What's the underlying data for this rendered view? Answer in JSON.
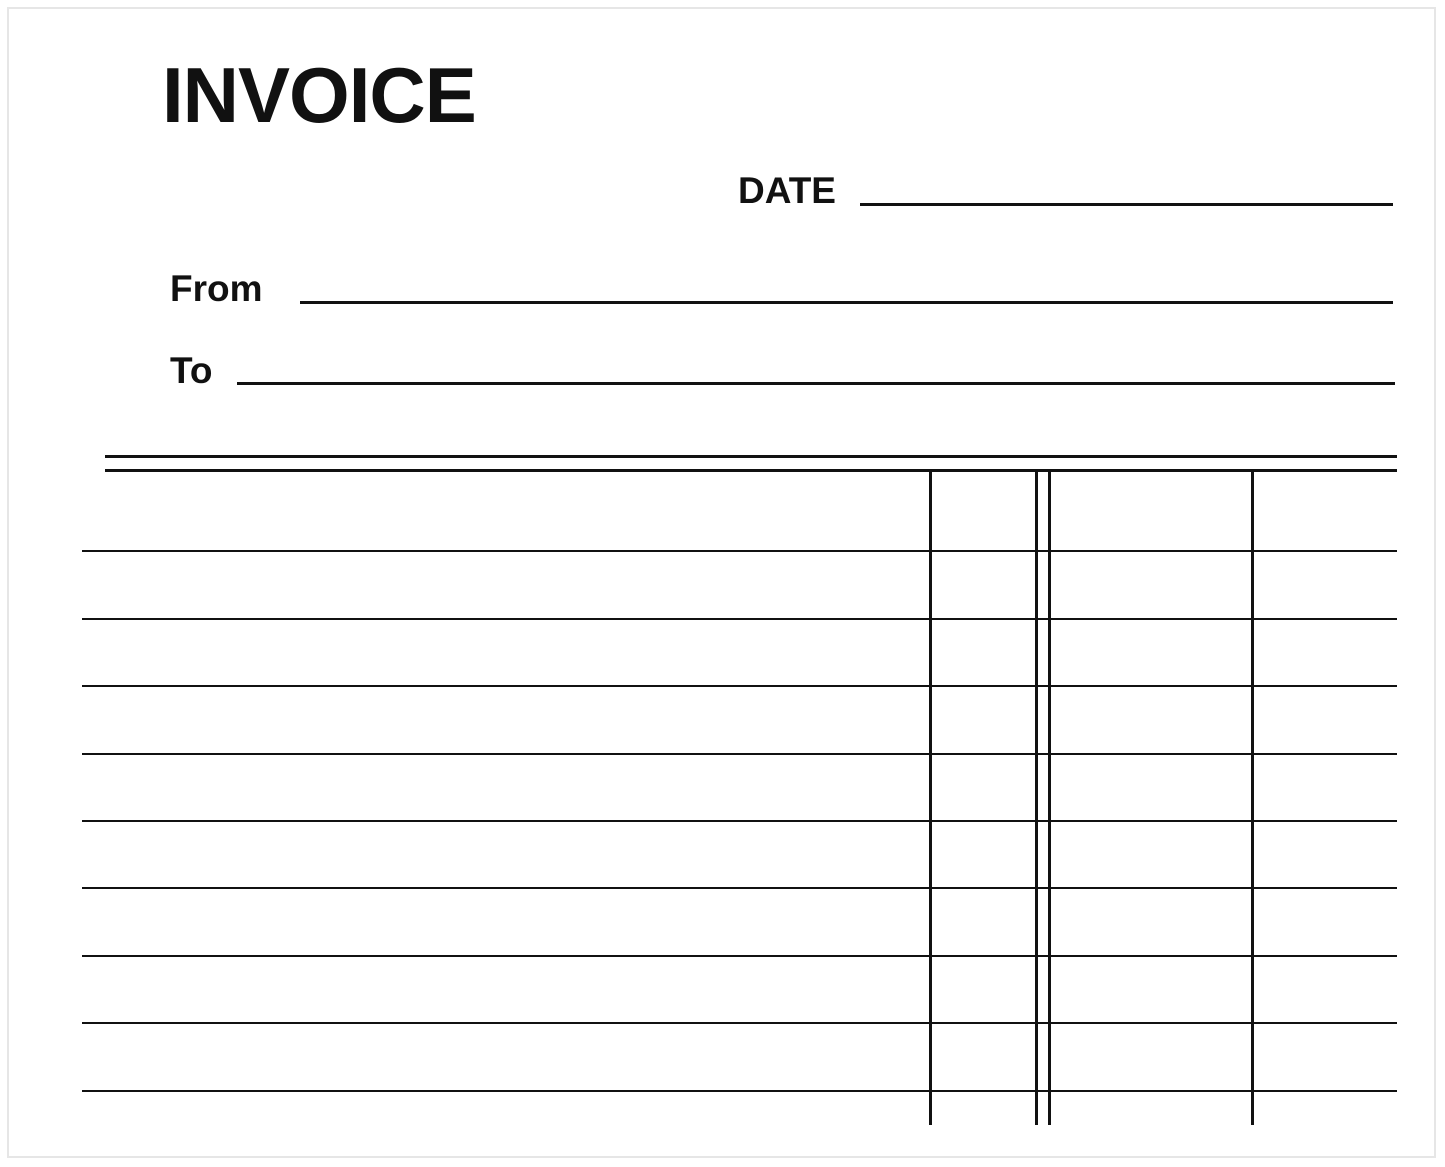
{
  "document": {
    "title": "INVOICE",
    "date_label": "DATE",
    "from_label": "From",
    "to_label": "To"
  },
  "table": {
    "row_count": 9,
    "column_count": 4
  }
}
